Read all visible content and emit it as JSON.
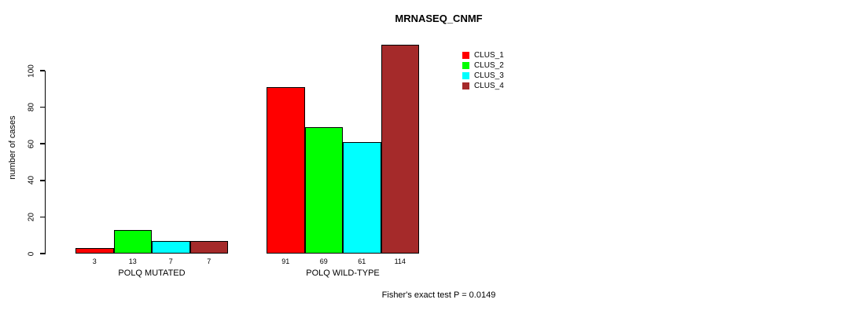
{
  "chart_data": {
    "type": "bar",
    "title": "MRNASEQ_CNMF",
    "ylabel": "number of cases",
    "xlabel": "",
    "yticks": [
      0,
      20,
      40,
      60,
      80,
      100
    ],
    "ylim": [
      0,
      117
    ],
    "grid": false,
    "legend_position": "top-right",
    "categories": [
      "POLQ MUTATED",
      "POLQ WILD-TYPE"
    ],
    "series": [
      {
        "name": "CLUS_1",
        "color": "#ff0000",
        "values": [
          3,
          91
        ]
      },
      {
        "name": "CLUS_2",
        "color": "#00ff00",
        "values": [
          13,
          69
        ]
      },
      {
        "name": "CLUS_3",
        "color": "#00ffff",
        "values": [
          7,
          61
        ]
      },
      {
        "name": "CLUS_4",
        "color": "#a52a2a",
        "values": [
          7,
          114
        ]
      }
    ],
    "footnote": "Fisher's exact test P = 0.0149"
  }
}
